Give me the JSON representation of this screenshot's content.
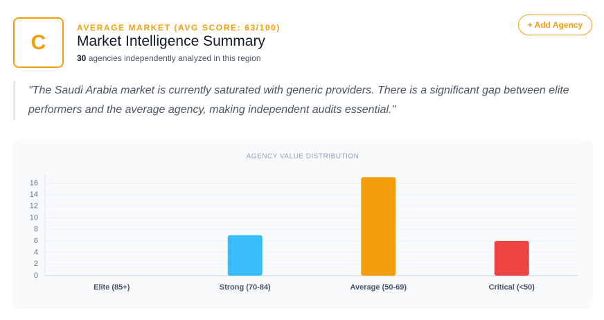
{
  "header": {
    "grade": "C",
    "eyebrow": "AVERAGE MARKET (AVG SCORE: 63/100)",
    "title": "Market Intelligence Summary",
    "agency_count": "30",
    "subtitle": "agencies independently analyzed in this region",
    "button": "+ Add Agency"
  },
  "quote": "\"The Saudi Arabia market is currently saturated with generic providers. There is a significant gap between elite performers and the average agency, making independent audits essential.\"",
  "chart_data": {
    "type": "bar",
    "title": "AGENCY VALUE DISTRIBUTION",
    "categories": [
      "Elite (85+)",
      "Strong (70-84)",
      "Average (50-69)",
      "Critical (<50)"
    ],
    "values": [
      0,
      7,
      17,
      6
    ],
    "colors": [
      "#10b981",
      "#38bdf8",
      "#f59e0b",
      "#ef4444"
    ],
    "ylim": [
      0,
      17
    ],
    "yticks": [
      0,
      2,
      4,
      6,
      8,
      10,
      12,
      14,
      16
    ],
    "grid": true
  }
}
